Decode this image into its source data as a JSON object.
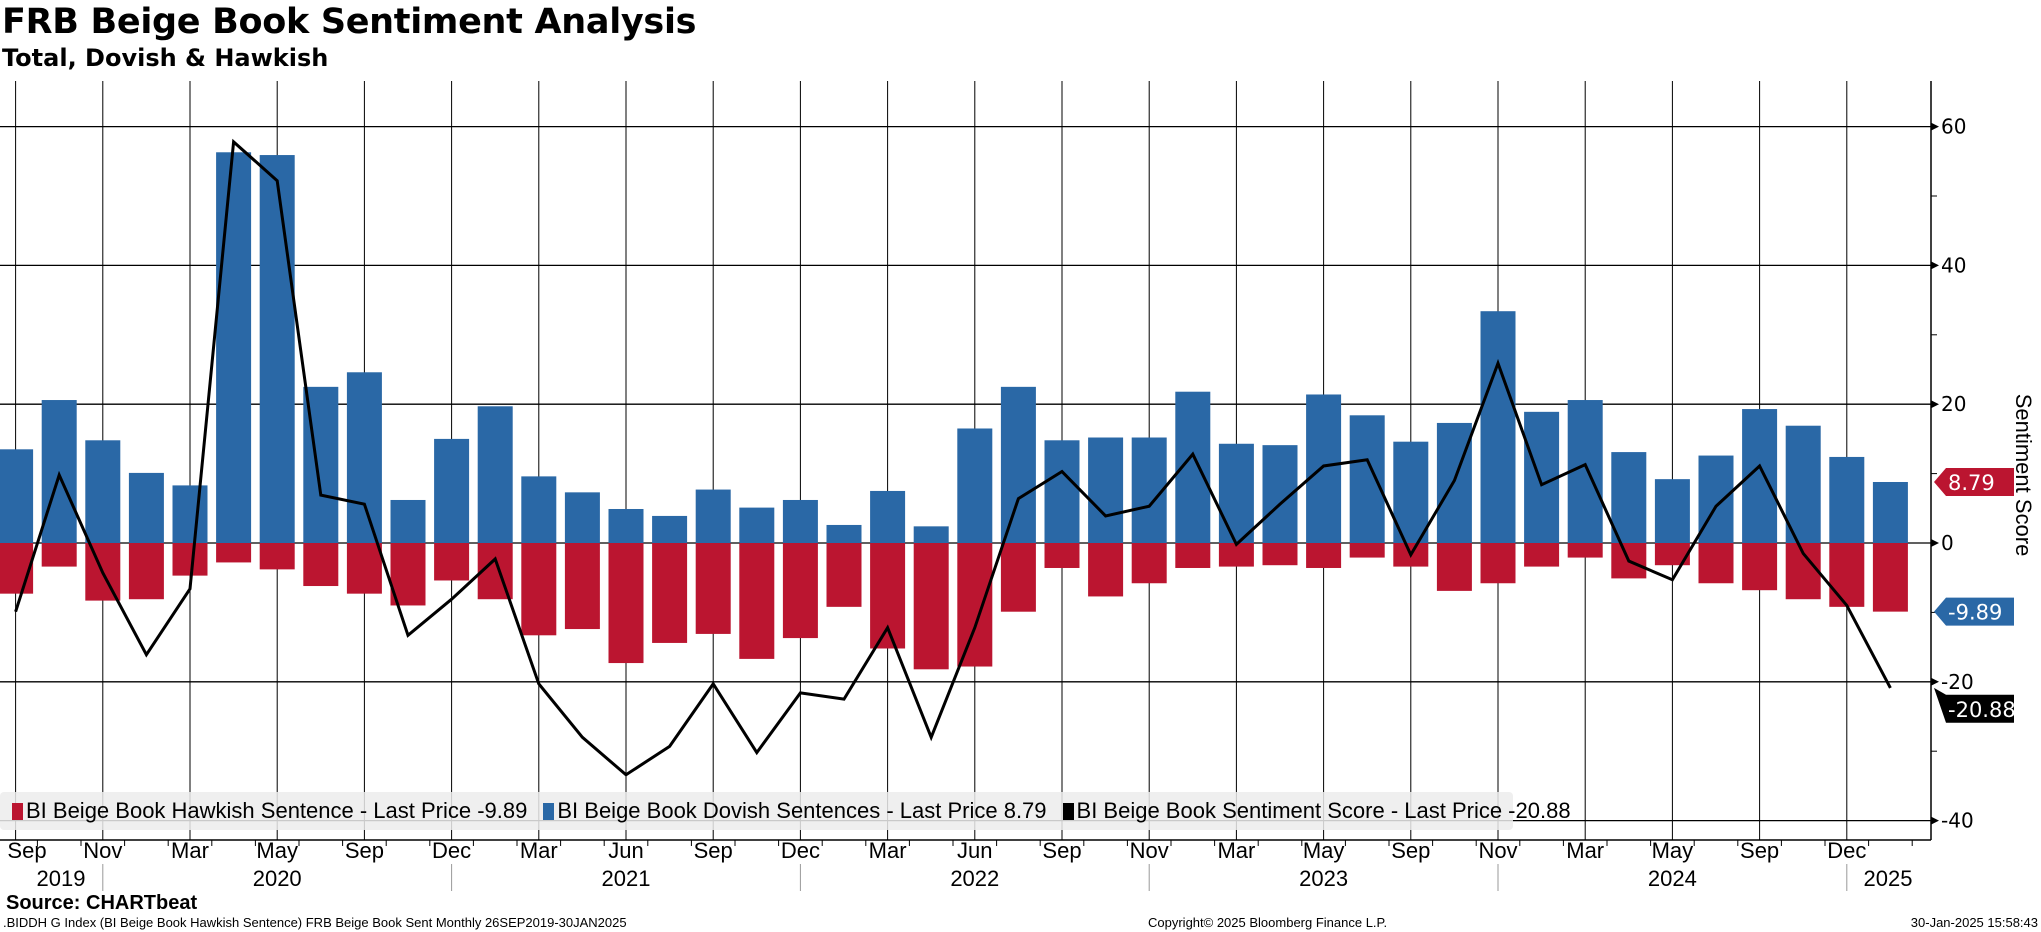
{
  "header": {
    "title": "FRB Beige Book Sentiment Analysis",
    "subtitle": "Total, Dovish & Hawkish"
  },
  "legend": [
    {
      "label": "BI Beige Book Hawkish Sentence - Last Price -9.89",
      "color": "#bb1530"
    },
    {
      "label": "BI Beige Book Dovish Sentences - Last Price 8.79",
      "color": "#2a68a6"
    },
    {
      "label": "BI Beige Book Sentiment Score - Last Price -20.88",
      "color": "#000000"
    }
  ],
  "source": "Source: CHARTbeat",
  "footer": {
    "left": ".BIDDH G Index (BI Beige Book Hawkish Sentence) FRB Beige Book Sent  Monthly 26SEP2019-30JAN2025",
    "center": "Copyright© 2025 Bloomberg Finance L.P.",
    "right": "30-Jan-2025 15:58:43"
  },
  "chart_data": {
    "type": "bar",
    "title": "FRB Beige Book Sentiment Analysis",
    "subtitle": "Total, Dovish & Hawkish",
    "ylabel": "Sentiment Score",
    "ylim": [
      -42,
      66
    ],
    "yticks": [
      60,
      40,
      20,
      0,
      -20,
      -40
    ],
    "grid": true,
    "legend_position": "bottom-left",
    "x_axis": {
      "note": "x in release index (8 Beige Book releases per year, Sep 2019 = 0)",
      "month_ticks": [
        {
          "label": "Sep",
          "x": 0.25
        },
        {
          "label": "Nov",
          "x": 2
        },
        {
          "label": "Mar",
          "x": 4
        },
        {
          "label": "May",
          "x": 6
        },
        {
          "label": "Sep",
          "x": 8
        },
        {
          "label": "Dec",
          "x": 10
        },
        {
          "label": "Mar",
          "x": 12
        },
        {
          "label": "Jun",
          "x": 14
        },
        {
          "label": "Sep",
          "x": 16
        },
        {
          "label": "Dec",
          "x": 18
        },
        {
          "label": "Mar",
          "x": 20
        },
        {
          "label": "Jun",
          "x": 22
        },
        {
          "label": "Sep",
          "x": 24
        },
        {
          "label": "Nov",
          "x": 26
        },
        {
          "label": "Mar",
          "x": 28
        },
        {
          "label": "May",
          "x": 30
        },
        {
          "label": "Sep",
          "x": 32
        },
        {
          "label": "Nov",
          "x": 34
        },
        {
          "label": "Mar",
          "x": 36
        },
        {
          "label": "May",
          "x": 38
        },
        {
          "label": "Sep",
          "x": 40
        },
        {
          "label": "Dec",
          "x": 42
        }
      ],
      "year_ticks": [
        {
          "label": "2019",
          "x": 1
        },
        {
          "label": "2020",
          "x": 6
        },
        {
          "label": "2021",
          "x": 14
        },
        {
          "label": "2022",
          "x": 22
        },
        {
          "label": "2023",
          "x": 30
        },
        {
          "label": "2024",
          "x": 38
        },
        {
          "label": "2025",
          "x": 43
        }
      ],
      "year_separators": [
        2,
        10,
        18,
        26,
        34,
        42
      ]
    },
    "series": [
      {
        "name": "BI Beige Book Dovish Sentences",
        "type": "bar",
        "color": "#2a68a6",
        "last": "8.79",
        "values": [
          13.5,
          20.6,
          14.8,
          10.1,
          8.3,
          56.3,
          55.9,
          22.5,
          24.6,
          6.2,
          15.0,
          19.7,
          9.6,
          7.3,
          4.9,
          3.9,
          7.7,
          5.1,
          6.2,
          2.6,
          7.5,
          2.4,
          16.5,
          22.5,
          14.8,
          15.2,
          15.2,
          21.8,
          14.3,
          14.1,
          21.4,
          18.4,
          14.6,
          17.3,
          33.4,
          18.9,
          20.6,
          13.1,
          9.2,
          12.6,
          19.3,
          16.9,
          12.4,
          8.79
        ]
      },
      {
        "name": "BI Beige Book Hawkish Sentence",
        "type": "bar",
        "color": "#bb1530",
        "last": "-9.89",
        "values": [
          -7.3,
          -3.4,
          -8.3,
          -8.1,
          -4.7,
          -2.8,
          -3.8,
          -6.2,
          -7.3,
          -9.0,
          -5.4,
          -8.1,
          -13.3,
          -12.4,
          -17.3,
          -14.4,
          -13.1,
          -16.7,
          -13.7,
          -9.2,
          -15.2,
          -18.2,
          -17.8,
          -9.9,
          -3.6,
          -7.7,
          -5.8,
          -3.6,
          -3.4,
          -3.2,
          -3.6,
          -2.1,
          -3.4,
          -6.9,
          -5.8,
          -3.4,
          -2.1,
          -5.1,
          -3.2,
          -5.8,
          -6.8,
          -8.1,
          -9.2,
          -9.89
        ]
      },
      {
        "name": "BI Beige Book Sentiment Score",
        "type": "line",
        "color": "#000000",
        "last": "-20.88",
        "values": [
          -9.9,
          9.8,
          -4.3,
          -16.1,
          -6.6,
          57.8,
          52.2,
          6.9,
          5.6,
          -13.3,
          -8.1,
          -2.3,
          -20.3,
          -28.0,
          -33.4,
          -29.3,
          -20.3,
          -30.2,
          -21.6,
          -22.5,
          -12.2,
          -28.0,
          -12.2,
          6.4,
          10.3,
          3.9,
          5.3,
          12.8,
          -0.2,
          5.6,
          11.1,
          12.0,
          -1.7,
          9.0,
          25.9,
          8.4,
          11.3,
          -2.6,
          -5.3,
          5.3,
          11.1,
          -1.5,
          -9.0,
          -20.88
        ]
      }
    ]
  }
}
